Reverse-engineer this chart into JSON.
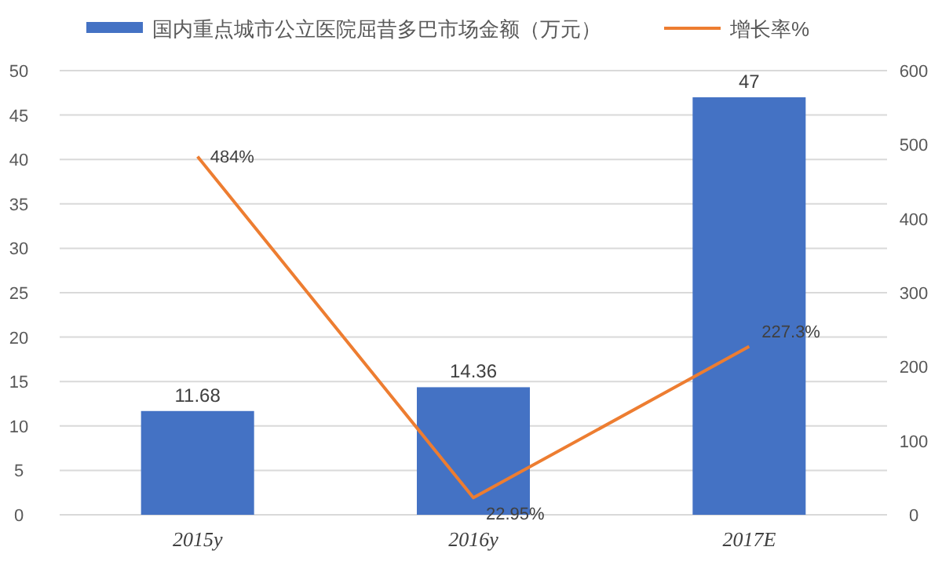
{
  "chart_data": {
    "type": "bar",
    "categories": [
      "2015y",
      "2016y",
      "2017E"
    ],
    "series": [
      {
        "name": "国内重点城市公立医院屈昔多巴市场金额（万元）",
        "color": "#4472c4",
        "values": [
          11.68,
          14.36,
          47
        ],
        "value_labels": [
          "11.68",
          "14.36",
          "47"
        ]
      },
      {
        "name": "增长率%",
        "type": "line",
        "axis": "y2",
        "color": "#ed7d31",
        "values": [
          484,
          22.95,
          227.3
        ],
        "value_labels": [
          "484%",
          "22.95%",
          "227.3%"
        ]
      }
    ],
    "ylim": [
      0,
      50
    ],
    "yticks": [
      0,
      5,
      10,
      15,
      20,
      25,
      30,
      35,
      40,
      45,
      50
    ],
    "y2lim": [
      0,
      600
    ],
    "y2ticks": [
      0,
      100,
      200,
      300,
      400,
      500,
      600
    ],
    "grid": "y",
    "legend": "top"
  }
}
